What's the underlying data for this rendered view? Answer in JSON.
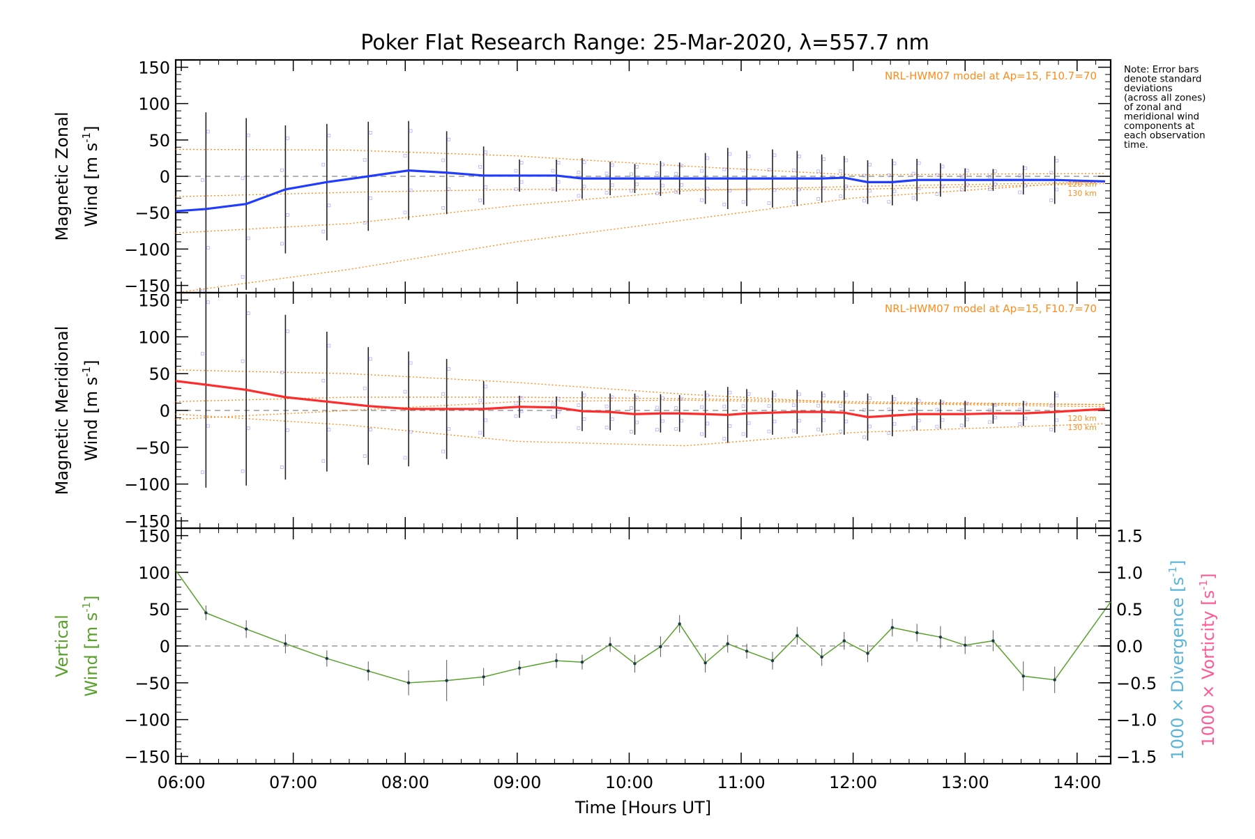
{
  "title": "Poker Flat Research Range: 25-Mar-2020, λ=557.7 nm",
  "note_lines": [
    "Note: Error bars",
    "denote standard",
    "deviations",
    "(across all zones)",
    "of zonal and",
    "meridional wind",
    "components at",
    "each observation",
    "time."
  ],
  "model_label": "NRL-HWM07 model at Ap=15, F10.7=70",
  "alt_labels": [
    "120 km",
    "130 km"
  ],
  "colors": {
    "zonal": "#1f3cff",
    "meridional": "#ff2a2a",
    "vertical": "#5aa02c",
    "model": "#ff8c1a",
    "divergence": "#5ab4d8",
    "vorticity": "#ff5a96",
    "errbar": "#222222",
    "scatter": "#7a7aff",
    "zero_line": "#888888"
  },
  "chart_data": [
    {
      "type": "line",
      "panel": "zonal",
      "ylabel_parts": [
        "Magnetic Zonal",
        "Wind [m s",
        "-1",
        "]"
      ],
      "ylim": [
        -160,
        160
      ],
      "yticks": [
        -150,
        -100,
        -50,
        0,
        50,
        100,
        150
      ],
      "xlim": [
        5.95,
        14.3
      ],
      "x": [
        5.95,
        6.22,
        6.58,
        6.93,
        7.3,
        7.67,
        8.03,
        8.37,
        8.7,
        9.02,
        9.35,
        9.58,
        9.83,
        10.05,
        10.28,
        10.45,
        10.68,
        10.88,
        11.05,
        11.28,
        11.5,
        11.72,
        11.92,
        12.13,
        12.35,
        12.57,
        12.78,
        13.0,
        13.25,
        13.52,
        13.8,
        14.25
      ],
      "series": [
        {
          "values": [
            -48,
            -45,
            -38,
            -18,
            -8,
            0,
            8,
            5,
            1,
            1,
            1,
            -3,
            -3,
            -3,
            -3,
            -3,
            -3,
            -3,
            -3,
            -3,
            -3,
            -3,
            -2,
            -8,
            -8,
            -5,
            -5,
            -5,
            -5,
            -5,
            -5,
            -7
          ]
        }
      ],
      "errors": [
        0,
        133,
        118,
        88,
        80,
        75,
        68,
        57,
        40,
        22,
        22,
        28,
        23,
        20,
        24,
        22,
        35,
        42,
        38,
        40,
        38,
        33,
        30,
        30,
        32,
        29,
        23,
        16,
        15,
        20,
        33,
        0
      ],
      "model_curves": [
        {
          "x": [
            5.95,
            7.5,
            9.0,
            10.5,
            12.0,
            14.25
          ],
          "y": [
            37,
            36,
            28,
            14,
            2,
            4
          ]
        },
        {
          "x": [
            5.95,
            7.5,
            9.0,
            10.5,
            12.0,
            14.25
          ],
          "y": [
            -78,
            -65,
            -40,
            -20,
            -14,
            -8
          ]
        },
        {
          "x": [
            5.95,
            7.5,
            9.0,
            10.5,
            12.0,
            14.25
          ],
          "y": [
            -160,
            -128,
            -90,
            -60,
            -30,
            -6
          ]
        },
        {
          "x": [
            5.95,
            7.5,
            9.0,
            10.5,
            12.0,
            14.25
          ],
          "y": [
            -28,
            -22,
            -18,
            -18,
            -18,
            -10
          ]
        }
      ]
    },
    {
      "type": "line",
      "panel": "meridional",
      "ylabel_parts": [
        "Magnetic Meridional",
        "Wind [m s",
        "-1",
        "]"
      ],
      "ylim": [
        -160,
        160
      ],
      "yticks": [
        -150,
        -100,
        -50,
        0,
        50,
        100,
        150
      ],
      "xlim": [
        5.95,
        14.3
      ],
      "x": [
        5.95,
        6.22,
        6.58,
        6.93,
        7.3,
        7.67,
        8.03,
        8.37,
        8.7,
        9.02,
        9.35,
        9.58,
        9.83,
        10.05,
        10.28,
        10.45,
        10.68,
        10.88,
        11.05,
        11.28,
        11.5,
        11.72,
        11.92,
        12.13,
        12.35,
        12.57,
        12.78,
        13.0,
        13.25,
        13.52,
        13.8,
        14.25
      ],
      "series": [
        {
          "values": [
            40,
            35,
            28,
            18,
            12,
            6,
            2,
            2,
            2,
            5,
            4,
            -1,
            -2,
            -5,
            -4,
            -4,
            -5,
            -6,
            -4,
            -3,
            -2,
            -2,
            -3,
            -9,
            -7,
            -5,
            -5,
            -5,
            -4,
            -4,
            -2,
            2
          ]
        }
      ],
      "errors": [
        0,
        140,
        130,
        112,
        95,
        80,
        78,
        68,
        38,
        15,
        15,
        27,
        25,
        28,
        26,
        25,
        32,
        38,
        33,
        30,
        30,
        28,
        30,
        32,
        28,
        22,
        20,
        18,
        14,
        17,
        28,
        0
      ],
      "model_curves": [
        {
          "x": [
            5.95,
            7.5,
            9.0,
            10.5,
            12.0,
            14.25
          ],
          "y": [
            55,
            50,
            38,
            22,
            10,
            8
          ]
        },
        {
          "x": [
            5.95,
            7.5,
            9.0,
            10.5,
            12.0,
            14.25
          ],
          "y": [
            -12,
            0,
            12,
            14,
            10,
            5
          ]
        },
        {
          "x": [
            5.95,
            7.5,
            9.0,
            10.5,
            12.0,
            14.25
          ],
          "y": [
            -5,
            -20,
            -42,
            -48,
            -30,
            -18
          ]
        },
        {
          "x": [
            5.95,
            7.5,
            9.0,
            10.5,
            12.0,
            14.25
          ],
          "y": [
            12,
            18,
            18,
            16,
            12,
            8
          ]
        }
      ]
    },
    {
      "type": "line",
      "panel": "vertical",
      "ylabel_parts": [
        "Vertical",
        "Wind [m s",
        "-1",
        "]"
      ],
      "ylim": [
        -160,
        160
      ],
      "yticks": [
        -150,
        -100,
        -50,
        0,
        50,
        100,
        150
      ],
      "y2lim": [
        -1.6,
        1.6
      ],
      "y2ticks": [
        -1.5,
        -1.0,
        -0.5,
        0.0,
        0.5,
        1.0,
        1.5
      ],
      "y2label_div": "1000 × Divergence [s",
      "y2label_vort": "1000 × Vorticity [s",
      "y2label_sup": "-1",
      "y2label_close": "]",
      "xlim": [
        5.95,
        14.3
      ],
      "xticks": [
        6,
        7,
        8,
        9,
        10,
        11,
        12,
        13,
        14
      ],
      "xticklabels": [
        "06:00",
        "07:00",
        "08:00",
        "09:00",
        "10:00",
        "11:00",
        "12:00",
        "13:00",
        "14:00"
      ],
      "xlabel": "Time [Hours UT]",
      "x": [
        5.95,
        6.22,
        6.58,
        6.93,
        7.3,
        7.67,
        8.03,
        8.37,
        8.7,
        9.02,
        9.35,
        9.58,
        9.83,
        10.05,
        10.28,
        10.45,
        10.68,
        10.88,
        11.05,
        11.28,
        11.5,
        11.72,
        11.92,
        12.13,
        12.35,
        12.57,
        12.78,
        13.0,
        13.25,
        13.52,
        13.8,
        14.3
      ],
      "series": [
        {
          "values": [
            103,
            45,
            23,
            3,
            -17,
            -34,
            -50,
            -47,
            -42,
            -30,
            -20,
            -22,
            2,
            -24,
            -1,
            30,
            -23,
            3,
            -7,
            -20,
            14,
            -15,
            7,
            -10,
            25,
            18,
            12,
            1,
            7,
            -41,
            -46,
            60
          ]
        }
      ],
      "errors": [
        0,
        10,
        12,
        13,
        11,
        13,
        17,
        28,
        12,
        10,
        10,
        10,
        10,
        12,
        14,
        12,
        13,
        12,
        10,
        12,
        12,
        12,
        12,
        12,
        12,
        12,
        15,
        12,
        14,
        20,
        18,
        0
      ]
    }
  ]
}
